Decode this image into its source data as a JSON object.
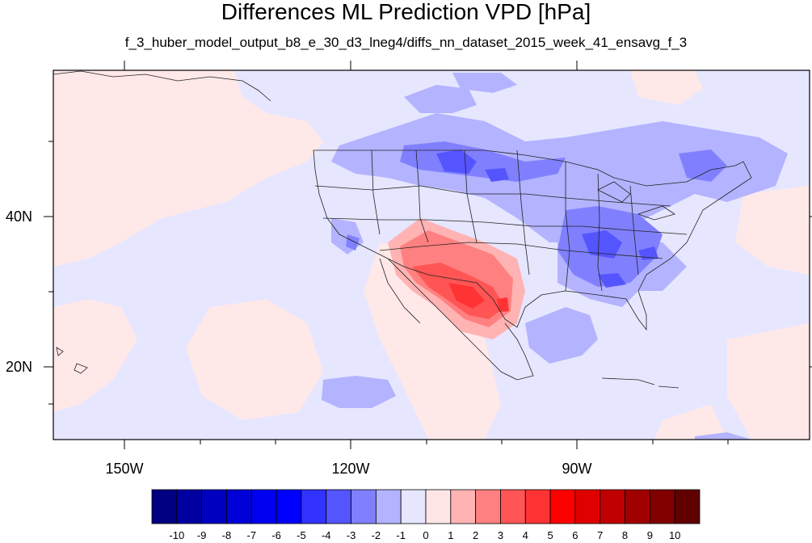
{
  "title": "Differences ML Prediction VPD [hPa]",
  "subtitle": "f_3_huber_model_output_b8_e_30_d3_lneg4/diffs_nn_dataset_2015_week_41_ensavg_f_3",
  "axes": {
    "lon_labels": [
      "150W",
      "120W",
      "90W"
    ],
    "lat_labels": [
      "40N",
      "20N"
    ]
  },
  "colorbar": {
    "labels": [
      "-10",
      "-9",
      "-8",
      "-7",
      "-6",
      "-5",
      "-4",
      "-3",
      "-2",
      "-1",
      "0",
      "1",
      "2",
      "3",
      "4",
      "5",
      "6",
      "7",
      "8",
      "9",
      "10"
    ],
    "colors": [
      "#000080",
      "#0000a0",
      "#0000c0",
      "#0000d8",
      "#0000f0",
      "#0000ff",
      "#3333ff",
      "#5555ff",
      "#8080ff",
      "#b3b3ff",
      "#e6e6ff",
      "#ffe6e6",
      "#ffb3b3",
      "#ff8080",
      "#ff5555",
      "#ff3333",
      "#ff0000",
      "#e00000",
      "#c00000",
      "#a00000",
      "#800000",
      "#600000"
    ]
  },
  "palette": {
    "background_positive": "#ffe8e8",
    "background_negative": "#e6e6ff",
    "light_blue": "#b3b3ff",
    "mid_blue": "#8080ff",
    "strong_blue": "#5555ff",
    "light_red": "#ffb3b3",
    "mid_red": "#ff8080",
    "strong_red": "#ff5555",
    "deep_red": "#ff3333",
    "land_outline": "#222222"
  }
}
